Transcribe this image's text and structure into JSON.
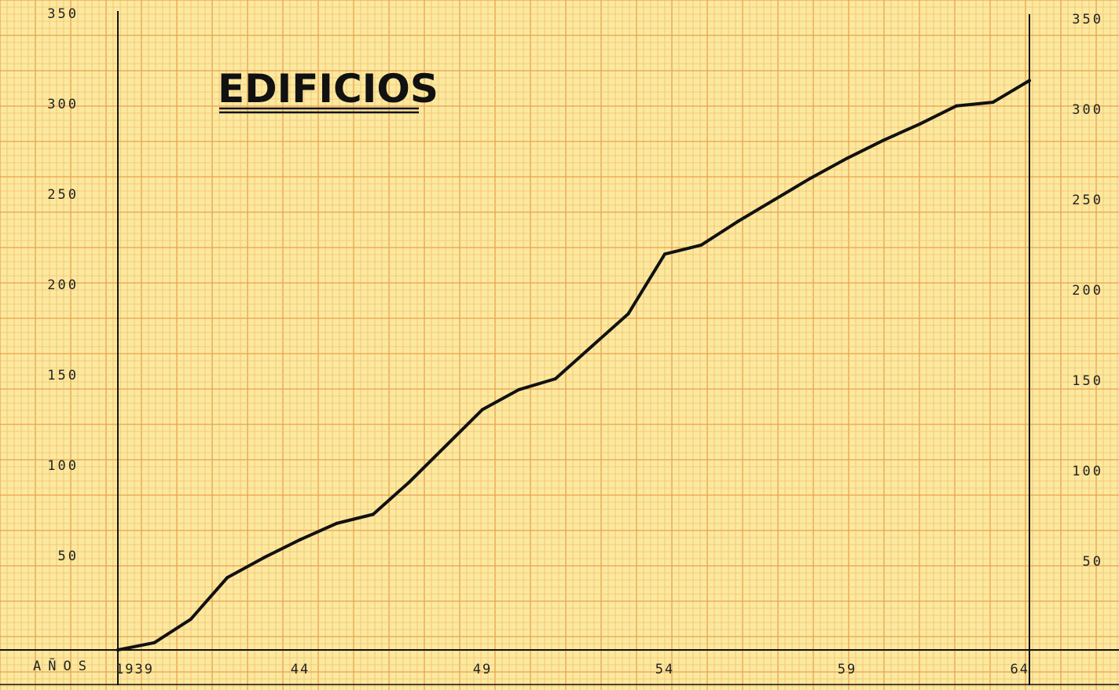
{
  "chart_data": {
    "type": "line",
    "title": "EDIFICIOS",
    "xlabel": "AÑOS",
    "ylabel": "",
    "x_tick_labels": [
      {
        "x": 1939,
        "label": "1939"
      },
      {
        "x": 1944,
        "label": "44"
      },
      {
        "x": 1949,
        "label": "49"
      },
      {
        "x": 1954,
        "label": "54"
      },
      {
        "x": 1959,
        "label": "59"
      },
      {
        "x": 1964,
        "label": "64"
      }
    ],
    "y_ticks": [
      50,
      100,
      150,
      200,
      250,
      300,
      350
    ],
    "y_tick_labels": [
      "50",
      "100",
      "150",
      "200",
      "250",
      "300",
      "350"
    ],
    "xlim": [
      1939,
      1964
    ],
    "ylim": [
      0,
      350
    ],
    "grid": true,
    "series": [
      {
        "x": [
          1939,
          1940,
          1941,
          1942,
          1943,
          1944,
          1945,
          1946,
          1947,
          1948,
          1949,
          1950,
          1951,
          1952,
          1953,
          1954,
          1955,
          1956,
          1957,
          1958,
          1959,
          1960,
          1961,
          1962,
          1963,
          1964
        ],
        "y": [
          0,
          4,
          17,
          40,
          51,
          61,
          70,
          75,
          93,
          113,
          133,
          144,
          150,
          168,
          186,
          219,
          224,
          237,
          249,
          261,
          272,
          282,
          291,
          301,
          303,
          315
        ]
      }
    ]
  },
  "colors": {
    "paper": "#fbe9a0",
    "grid_minor": "#f3bf6a",
    "grid_major": "#eaa24e",
    "line": "#111111",
    "axis": "#111111"
  }
}
